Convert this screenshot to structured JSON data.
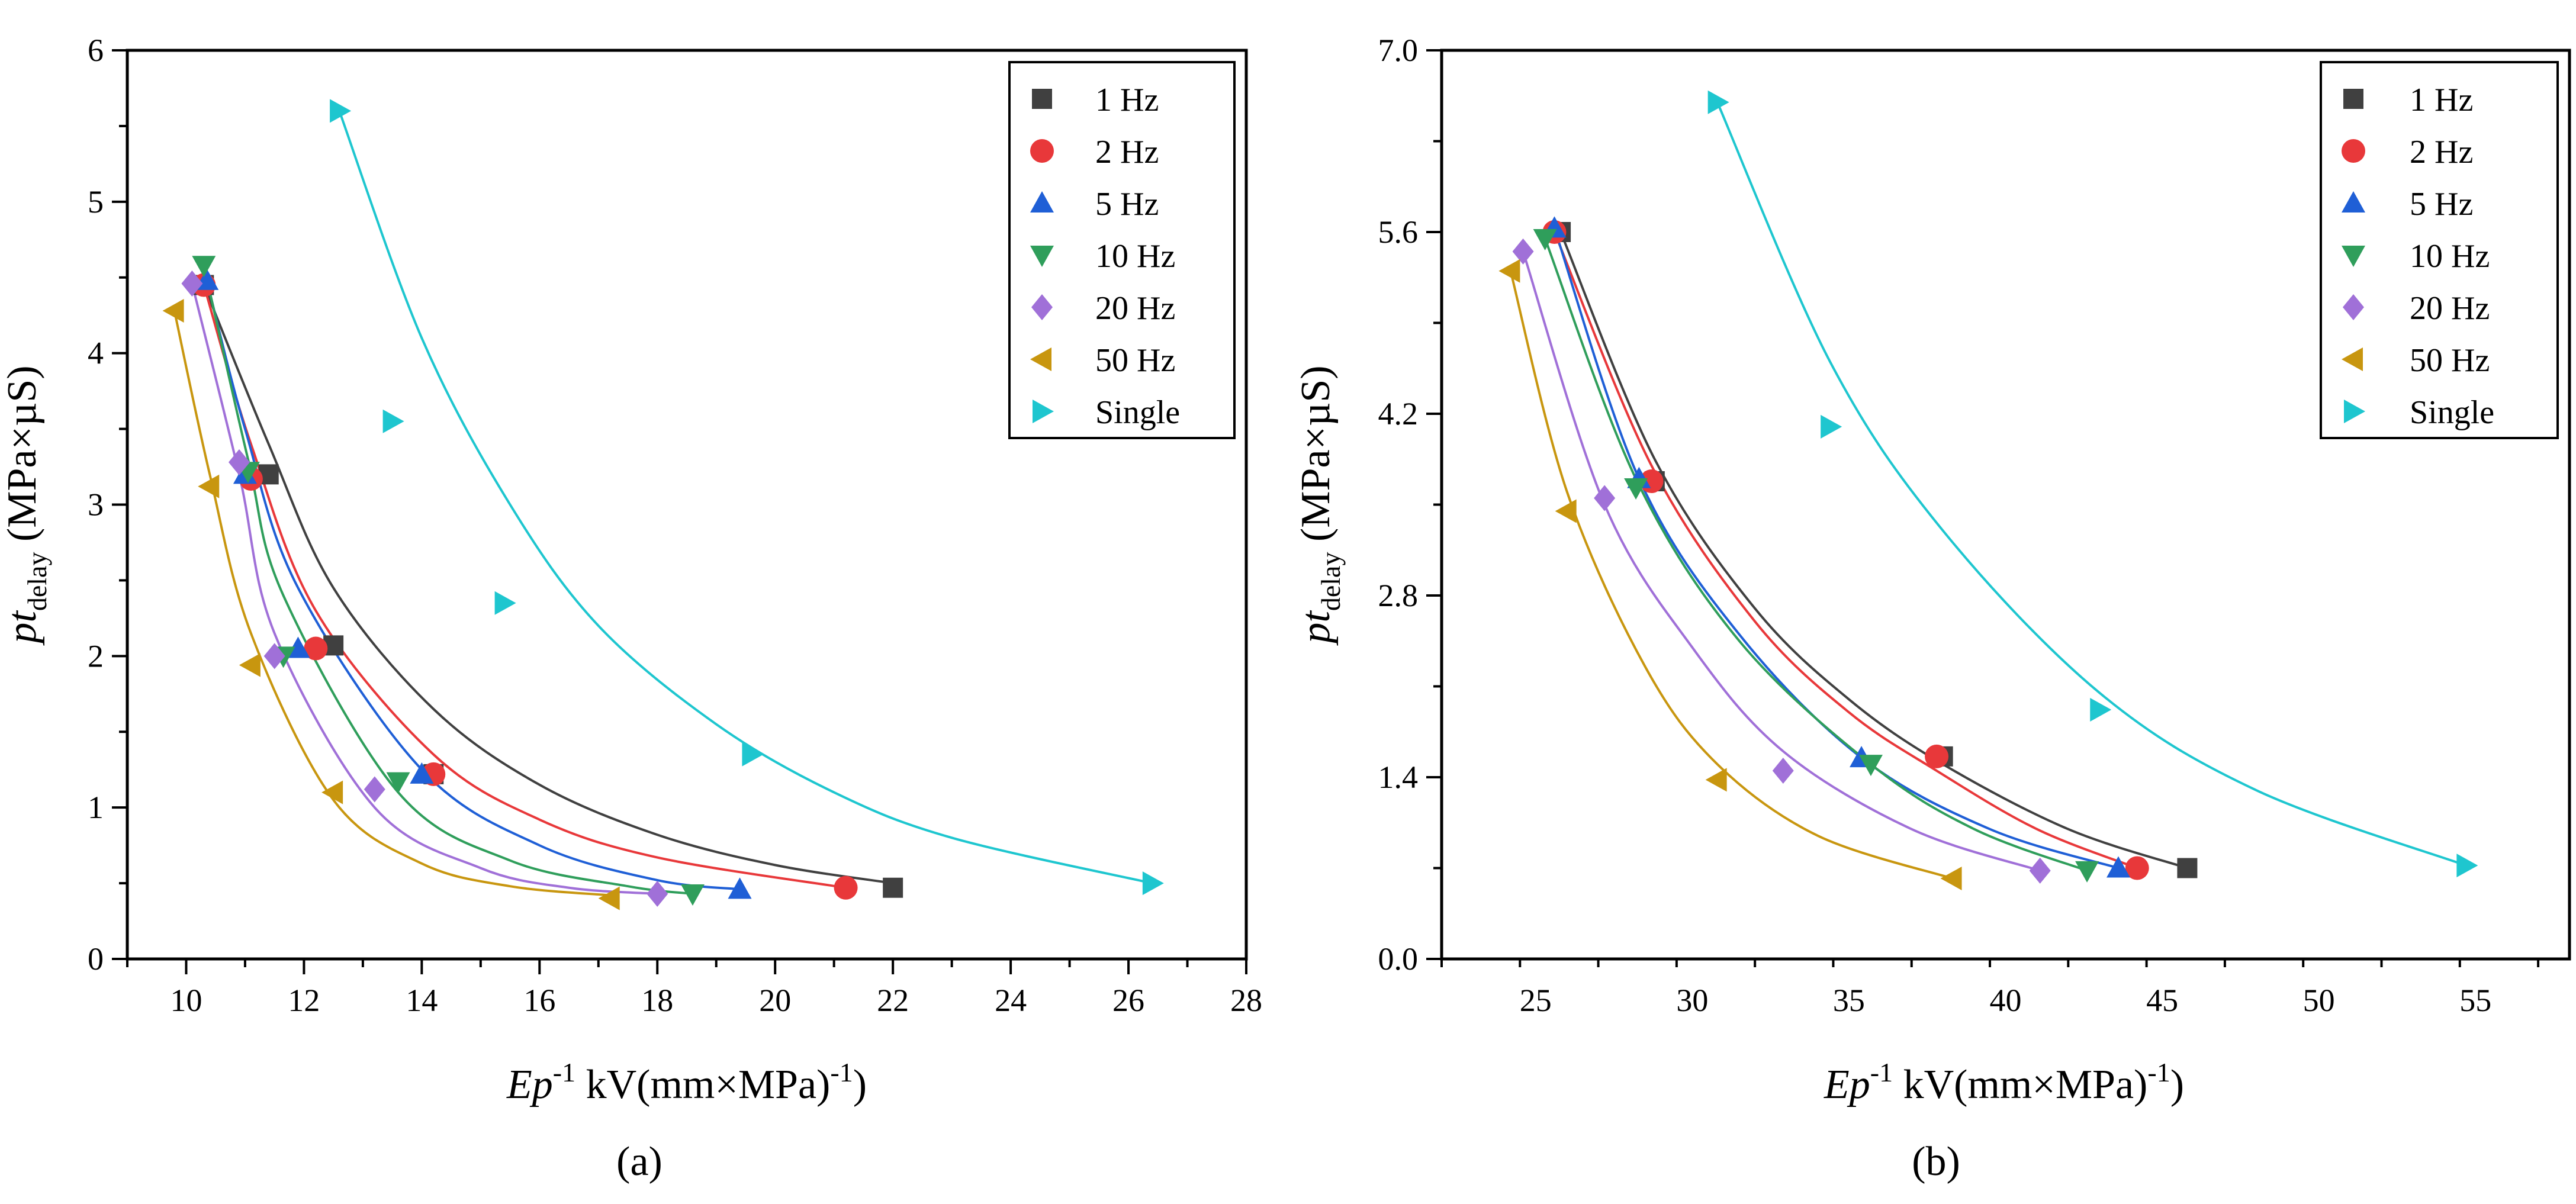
{
  "figure": {
    "caption_a": "(a)",
    "caption_b": "(b)"
  },
  "chart_data": [
    {
      "id": "a",
      "type": "scatter",
      "title": "",
      "xlabel": "Ep-1 (kV(mm×MPa)-1)",
      "ylabel": "ptdelay (MPa×µS)",
      "xlim": [
        9,
        28
      ],
      "ylim": [
        0,
        6
      ],
      "xticks": [
        10,
        12,
        14,
        16,
        18,
        20,
        22,
        24,
        26,
        28
      ],
      "yticks": [
        0,
        1,
        2,
        3,
        4,
        5,
        6
      ],
      "xtick_labels": [
        "10",
        "12",
        "14",
        "16",
        "18",
        "20",
        "22",
        "24",
        "26",
        "28"
      ],
      "ytick_labels": [
        "0",
        "1",
        "2",
        "3",
        "4",
        "5",
        "6"
      ],
      "grid": false,
      "legend_position": "top-right",
      "series": [
        {
          "name": "1 Hz",
          "color": "#404040",
          "marker": "square",
          "x": [
            10.3,
            11.4,
            12.5,
            14.2,
            22.0
          ],
          "y": [
            4.45,
            3.2,
            2.07,
            1.22,
            0.47
          ],
          "fit": [
            [
              10.3,
              4.45
            ],
            [
              11.4,
              3.4
            ],
            [
              12.5,
              2.45
            ],
            [
              14.2,
              1.65
            ],
            [
              16,
              1.15
            ],
            [
              18,
              0.82
            ],
            [
              20,
              0.62
            ],
            [
              22,
              0.5
            ]
          ]
        },
        {
          "name": "2 Hz",
          "color": "#e8383a",
          "marker": "circle",
          "x": [
            10.3,
            11.1,
            12.2,
            14.2,
            21.2
          ],
          "y": [
            4.45,
            3.17,
            2.05,
            1.22,
            0.47
          ],
          "fit": [
            [
              10.3,
              4.45
            ],
            [
              11.1,
              3.4
            ],
            [
              12.2,
              2.3
            ],
            [
              14.2,
              1.35
            ],
            [
              16,
              0.92
            ],
            [
              18,
              0.67
            ],
            [
              21.2,
              0.47
            ]
          ]
        },
        {
          "name": "5 Hz",
          "color": "#1f5fd6",
          "marker": "triangle-up",
          "x": [
            10.35,
            11.0,
            11.9,
            14.0,
            19.4
          ],
          "y": [
            4.48,
            3.2,
            2.05,
            1.22,
            0.46
          ],
          "fit": [
            [
              10.35,
              4.48
            ],
            [
              11.0,
              3.5
            ],
            [
              11.9,
              2.45
            ],
            [
              14.0,
              1.25
            ],
            [
              16,
              0.75
            ],
            [
              18,
              0.52
            ],
            [
              19.4,
              0.46
            ]
          ]
        },
        {
          "name": "10 Hz",
          "color": "#2f9e5b",
          "marker": "triangle-down",
          "x": [
            10.3,
            11.05,
            11.65,
            13.6,
            18.6
          ],
          "y": [
            4.58,
            3.22,
            2.0,
            1.17,
            0.43
          ],
          "fit": [
            [
              10.3,
              4.58
            ],
            [
              11.05,
              3.3
            ],
            [
              11.65,
              2.4
            ],
            [
              13.6,
              1.1
            ],
            [
              15.5,
              0.65
            ],
            [
              17.5,
              0.48
            ],
            [
              18.6,
              0.43
            ]
          ]
        },
        {
          "name": "20 Hz",
          "color": "#a070d8",
          "marker": "diamond",
          "x": [
            10.1,
            10.9,
            11.5,
            13.2,
            18.0
          ],
          "y": [
            4.46,
            3.28,
            2.0,
            1.12,
            0.43
          ],
          "fit": [
            [
              10.1,
              4.46
            ],
            [
              10.9,
              3.2
            ],
            [
              11.5,
              2.15
            ],
            [
              13.2,
              1.0
            ],
            [
              15,
              0.6
            ],
            [
              16.5,
              0.47
            ],
            [
              18.0,
              0.43
            ]
          ]
        },
        {
          "name": "50 Hz",
          "color": "#c8960f",
          "marker": "triangle-left",
          "x": [
            9.8,
            10.4,
            11.1,
            12.5,
            17.2
          ],
          "y": [
            4.28,
            3.12,
            1.94,
            1.1,
            0.4
          ],
          "fit": [
            [
              9.8,
              4.28
            ],
            [
              10.4,
              3.2
            ],
            [
              11.1,
              2.15
            ],
            [
              12.5,
              1.05
            ],
            [
              14,
              0.63
            ],
            [
              15.5,
              0.48
            ],
            [
              17.2,
              0.42
            ]
          ]
        },
        {
          "name": "Single",
          "color": "#1ec6cf",
          "marker": "triangle-right",
          "x": [
            12.6,
            13.5,
            15.4,
            19.6,
            26.4
          ],
          "y": [
            5.6,
            3.55,
            2.35,
            1.35,
            0.5
          ],
          "fit": [
            [
              12.6,
              5.6
            ],
            [
              14,
              4.1
            ],
            [
              15.5,
              3.0
            ],
            [
              17,
              2.2
            ],
            [
              19,
              1.55
            ],
            [
              21,
              1.1
            ],
            [
              23,
              0.8
            ],
            [
              26.4,
              0.5
            ]
          ]
        }
      ]
    },
    {
      "id": "b",
      "type": "scatter",
      "title": "",
      "xlabel": "Ep-1 (kV(mm×MPa)-1)",
      "ylabel": "ptdelay (MPa×µS)",
      "xlim": [
        22,
        58
      ],
      "ylim": [
        0,
        7
      ],
      "xticks": [
        25,
        30,
        35,
        40,
        45,
        50,
        55
      ],
      "yticks": [
        0,
        1.4,
        2.8,
        4.2,
        5.6,
        7.0
      ],
      "xtick_labels": [
        "25",
        "30",
        "35",
        "40",
        "45",
        "50",
        "55"
      ],
      "ytick_labels": [
        "0.0",
        "1.4",
        "2.8",
        "4.2",
        "5.6",
        "7.0"
      ],
      "grid": false,
      "legend_position": "top-right",
      "series": [
        {
          "name": "1 Hz",
          "color": "#404040",
          "marker": "square",
          "x": [
            25.8,
            28.8,
            38.0,
            45.8
          ],
          "y": [
            5.6,
            3.68,
            1.56,
            0.7
          ],
          "fit": [
            [
              25.8,
              5.6
            ],
            [
              28.8,
              3.85
            ],
            [
              32,
              2.7
            ],
            [
              35,
              2.0
            ],
            [
              38.0,
              1.5
            ],
            [
              42,
              1.0
            ],
            [
              45.8,
              0.7
            ]
          ]
        },
        {
          "name": "2 Hz",
          "color": "#e8383a",
          "marker": "circle",
          "x": [
            25.6,
            28.7,
            37.8,
            44.2
          ],
          "y": [
            5.6,
            3.68,
            1.56,
            0.7
          ],
          "fit": [
            [
              25.6,
              5.6
            ],
            [
              28.7,
              3.8
            ],
            [
              32,
              2.6
            ],
            [
              35,
              1.9
            ],
            [
              37.8,
              1.45
            ],
            [
              41,
              1.0
            ],
            [
              44.2,
              0.7
            ]
          ]
        },
        {
          "name": "5 Hz",
          "color": "#1f5fd6",
          "marker": "triangle-up",
          "x": [
            25.6,
            28.3,
            35.4,
            43.6
          ],
          "y": [
            5.63,
            3.7,
            1.55,
            0.7
          ],
          "fit": [
            [
              25.6,
              5.63
            ],
            [
              28.3,
              3.7
            ],
            [
              31.5,
              2.5
            ],
            [
              35.4,
              1.55
            ],
            [
              39.5,
              1.0
            ],
            [
              43.6,
              0.7
            ]
          ]
        },
        {
          "name": "10 Hz",
          "color": "#2f9e5b",
          "marker": "triangle-down",
          "x": [
            25.3,
            28.2,
            35.7,
            42.6
          ],
          "y": [
            5.55,
            3.63,
            1.5,
            0.68
          ],
          "fit": [
            [
              25.3,
              5.55
            ],
            [
              28.2,
              3.7
            ],
            [
              31.5,
              2.45
            ],
            [
              35.7,
              1.5
            ],
            [
              39,
              1.0
            ],
            [
              42.6,
              0.68
            ]
          ]
        },
        {
          "name": "20 Hz",
          "color": "#a070d8",
          "marker": "diamond",
          "x": [
            24.6,
            27.2,
            32.9,
            41.1
          ],
          "y": [
            5.45,
            3.55,
            1.45,
            0.68
          ],
          "fit": [
            [
              24.6,
              5.45
            ],
            [
              27.2,
              3.5
            ],
            [
              30,
              2.4
            ],
            [
              32.9,
              1.6
            ],
            [
              37,
              1.0
            ],
            [
              41.1,
              0.68
            ]
          ]
        },
        {
          "name": "50 Hz",
          "color": "#c8960f",
          "marker": "triangle-left",
          "x": [
            24.2,
            26.0,
            30.8,
            38.3
          ],
          "y": [
            5.3,
            3.45,
            1.38,
            0.62
          ],
          "fit": [
            [
              24.2,
              5.3
            ],
            [
              26.0,
              3.6
            ],
            [
              28.5,
              2.25
            ],
            [
              30.8,
              1.5
            ],
            [
              34,
              0.95
            ],
            [
              38.3,
              0.62
            ]
          ]
        },
        {
          "name": "Single",
          "color": "#1ec6cf",
          "marker": "triangle-right",
          "x": [
            30.8,
            34.4,
            43.0,
            54.7
          ],
          "y": [
            6.6,
            4.1,
            1.92,
            0.72
          ],
          "fit": [
            [
              30.8,
              6.6
            ],
            [
              34.4,
              4.6
            ],
            [
              38,
              3.3
            ],
            [
              43.0,
              2.05
            ],
            [
              48,
              1.3
            ],
            [
              54.7,
              0.72
            ]
          ]
        }
      ]
    }
  ]
}
